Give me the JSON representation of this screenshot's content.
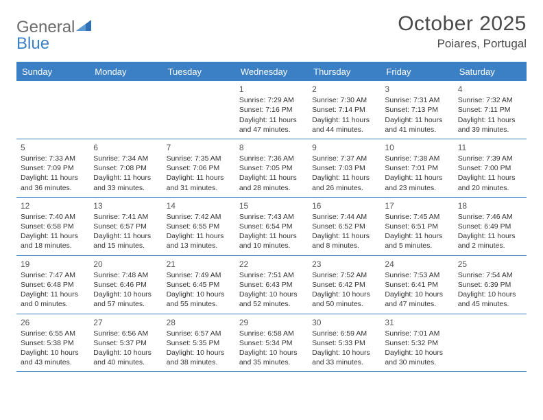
{
  "brand": {
    "word1": "General",
    "word2": "Blue"
  },
  "title": "October 2025",
  "subtitle": "Poiares, Portugal",
  "colors": {
    "accent": "#3b7fc4",
    "text": "#4a4a4a",
    "cell_text": "#333333",
    "background": "#ffffff"
  },
  "calendar": {
    "weekdays": [
      "Sunday",
      "Monday",
      "Tuesday",
      "Wednesday",
      "Thursday",
      "Friday",
      "Saturday"
    ],
    "weeks": [
      [
        null,
        null,
        null,
        {
          "n": "1",
          "sunrise": "7:29 AM",
          "sunset": "7:16 PM",
          "daylight": "11 hours and 47 minutes."
        },
        {
          "n": "2",
          "sunrise": "7:30 AM",
          "sunset": "7:14 PM",
          "daylight": "11 hours and 44 minutes."
        },
        {
          "n": "3",
          "sunrise": "7:31 AM",
          "sunset": "7:13 PM",
          "daylight": "11 hours and 41 minutes."
        },
        {
          "n": "4",
          "sunrise": "7:32 AM",
          "sunset": "7:11 PM",
          "daylight": "11 hours and 39 minutes."
        }
      ],
      [
        {
          "n": "5",
          "sunrise": "7:33 AM",
          "sunset": "7:09 PM",
          "daylight": "11 hours and 36 minutes."
        },
        {
          "n": "6",
          "sunrise": "7:34 AM",
          "sunset": "7:08 PM",
          "daylight": "11 hours and 33 minutes."
        },
        {
          "n": "7",
          "sunrise": "7:35 AM",
          "sunset": "7:06 PM",
          "daylight": "11 hours and 31 minutes."
        },
        {
          "n": "8",
          "sunrise": "7:36 AM",
          "sunset": "7:05 PM",
          "daylight": "11 hours and 28 minutes."
        },
        {
          "n": "9",
          "sunrise": "7:37 AM",
          "sunset": "7:03 PM",
          "daylight": "11 hours and 26 minutes."
        },
        {
          "n": "10",
          "sunrise": "7:38 AM",
          "sunset": "7:01 PM",
          "daylight": "11 hours and 23 minutes."
        },
        {
          "n": "11",
          "sunrise": "7:39 AM",
          "sunset": "7:00 PM",
          "daylight": "11 hours and 20 minutes."
        }
      ],
      [
        {
          "n": "12",
          "sunrise": "7:40 AM",
          "sunset": "6:58 PM",
          "daylight": "11 hours and 18 minutes."
        },
        {
          "n": "13",
          "sunrise": "7:41 AM",
          "sunset": "6:57 PM",
          "daylight": "11 hours and 15 minutes."
        },
        {
          "n": "14",
          "sunrise": "7:42 AM",
          "sunset": "6:55 PM",
          "daylight": "11 hours and 13 minutes."
        },
        {
          "n": "15",
          "sunrise": "7:43 AM",
          "sunset": "6:54 PM",
          "daylight": "11 hours and 10 minutes."
        },
        {
          "n": "16",
          "sunrise": "7:44 AM",
          "sunset": "6:52 PM",
          "daylight": "11 hours and 8 minutes."
        },
        {
          "n": "17",
          "sunrise": "7:45 AM",
          "sunset": "6:51 PM",
          "daylight": "11 hours and 5 minutes."
        },
        {
          "n": "18",
          "sunrise": "7:46 AM",
          "sunset": "6:49 PM",
          "daylight": "11 hours and 2 minutes."
        }
      ],
      [
        {
          "n": "19",
          "sunrise": "7:47 AM",
          "sunset": "6:48 PM",
          "daylight": "11 hours and 0 minutes."
        },
        {
          "n": "20",
          "sunrise": "7:48 AM",
          "sunset": "6:46 PM",
          "daylight": "10 hours and 57 minutes."
        },
        {
          "n": "21",
          "sunrise": "7:49 AM",
          "sunset": "6:45 PM",
          "daylight": "10 hours and 55 minutes."
        },
        {
          "n": "22",
          "sunrise": "7:51 AM",
          "sunset": "6:43 PM",
          "daylight": "10 hours and 52 minutes."
        },
        {
          "n": "23",
          "sunrise": "7:52 AM",
          "sunset": "6:42 PM",
          "daylight": "10 hours and 50 minutes."
        },
        {
          "n": "24",
          "sunrise": "7:53 AM",
          "sunset": "6:41 PM",
          "daylight": "10 hours and 47 minutes."
        },
        {
          "n": "25",
          "sunrise": "7:54 AM",
          "sunset": "6:39 PM",
          "daylight": "10 hours and 45 minutes."
        }
      ],
      [
        {
          "n": "26",
          "sunrise": "6:55 AM",
          "sunset": "5:38 PM",
          "daylight": "10 hours and 43 minutes."
        },
        {
          "n": "27",
          "sunrise": "6:56 AM",
          "sunset": "5:37 PM",
          "daylight": "10 hours and 40 minutes."
        },
        {
          "n": "28",
          "sunrise": "6:57 AM",
          "sunset": "5:35 PM",
          "daylight": "10 hours and 38 minutes."
        },
        {
          "n": "29",
          "sunrise": "6:58 AM",
          "sunset": "5:34 PM",
          "daylight": "10 hours and 35 minutes."
        },
        {
          "n": "30",
          "sunrise": "6:59 AM",
          "sunset": "5:33 PM",
          "daylight": "10 hours and 33 minutes."
        },
        {
          "n": "31",
          "sunrise": "7:01 AM",
          "sunset": "5:32 PM",
          "daylight": "10 hours and 30 minutes."
        },
        null
      ]
    ],
    "labels": {
      "sunrise": "Sunrise:",
      "sunset": "Sunset:",
      "daylight": "Daylight:"
    }
  }
}
